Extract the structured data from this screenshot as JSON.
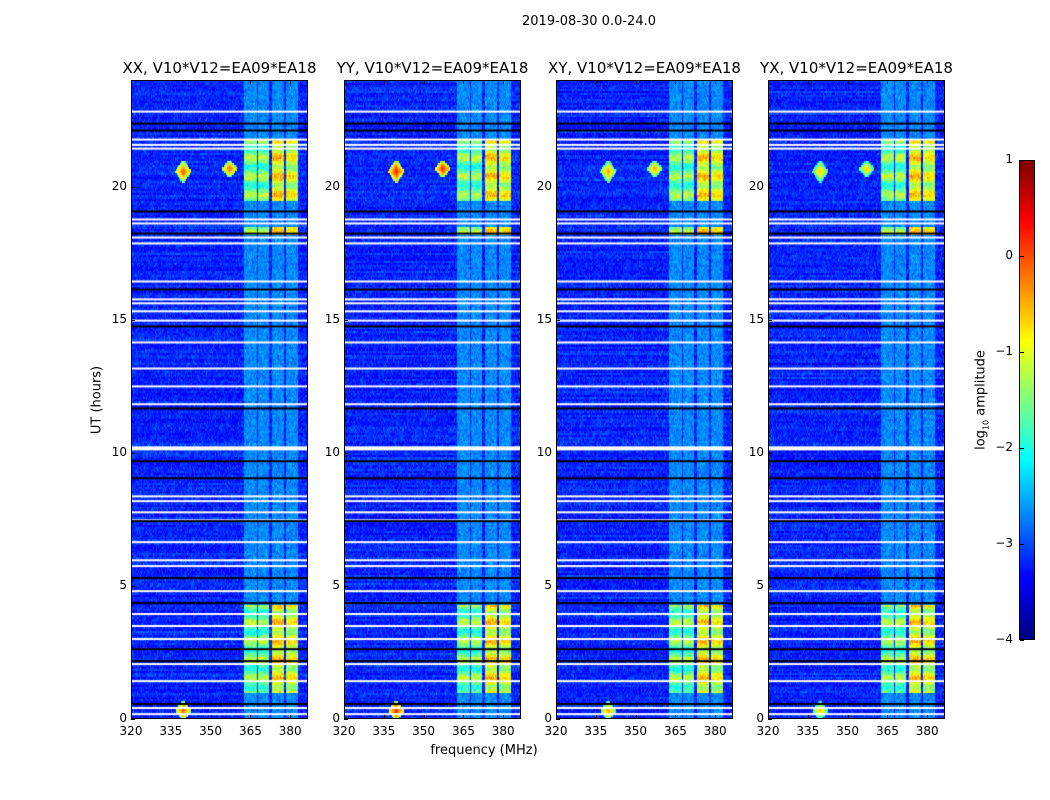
{
  "chart_data": {
    "type": "heatmap",
    "title": "2019-08-30 0.0-24.0",
    "xlabel": "frequency (MHz)",
    "ylabel": "UT (hours)",
    "xlim": [
      320,
      386.7
    ],
    "ylim": [
      0,
      24
    ],
    "xticks": [
      320,
      335,
      350,
      365,
      380
    ],
    "yticks": [
      0,
      5,
      10,
      15,
      20
    ],
    "panels": [
      {
        "title": "XX, V10*V12=EA09*EA18",
        "point_source_amp": 0.0
      },
      {
        "title": "YY, V10*V12=EA09*EA18",
        "point_source_amp": 0.3
      },
      {
        "title": "XY, V10*V12=EA09*EA18",
        "point_source_amp": -0.3
      },
      {
        "title": "YX, V10*V12=EA09*EA18",
        "point_source_amp": -0.5
      }
    ],
    "colorbar": {
      "label": "log10 amplitude",
      "label_main": "log",
      "label_sub": "10",
      "label_rest": " amplitude",
      "colormap": "jet",
      "range": [
        -4,
        1
      ],
      "ticks": [
        1,
        0,
        -1,
        -2,
        -3,
        -4
      ],
      "tick_labels": [
        "1",
        "0",
        "−1",
        "−2",
        "−3",
        "−4"
      ]
    },
    "background_log_amp": -3.2,
    "flagged_hours_white": [
      22.85,
      21.8,
      21.6,
      21.46,
      18.8,
      18.65,
      18.12,
      17.9,
      16.47,
      15.8,
      15.65,
      15.35,
      15.0,
      14.18,
      13.2,
      12.53,
      11.86,
      10.24,
      8.4,
      8.22,
      7.8,
      7.5,
      6.68,
      6.0,
      5.78,
      4.84,
      3.98,
      3.53,
      3.04,
      2.1,
      1.46,
      0.45,
      0.22
    ],
    "flagged_hours_black": [
      22.4,
      22.14,
      19.1,
      18.27,
      16.17,
      14.78,
      11.7,
      9.72,
      9.08,
      7.47,
      5.33,
      4.39,
      2.66,
      2.21,
      0.6
    ],
    "rfi_bands_mhz": [
      [
        362.3,
        367.2,
        -1.6
      ],
      [
        367.6,
        371.8,
        -1.6
      ],
      [
        372.9,
        377.4,
        -0.9
      ],
      [
        378.2,
        382.7,
        -1.1
      ]
    ],
    "rfi_active_hours": [
      [
        1.0,
        4.3
      ],
      [
        18.2,
        18.5
      ],
      [
        19.5,
        21.8
      ]
    ],
    "point_sources": [
      {
        "freq": 339.5,
        "hours": [
          20.2,
          21.0
        ]
      },
      {
        "freq": 357.0,
        "hours": [
          20.4,
          21.0
        ]
      },
      {
        "freq": 339.5,
        "hours": [
          0.0,
          0.7
        ]
      }
    ]
  }
}
